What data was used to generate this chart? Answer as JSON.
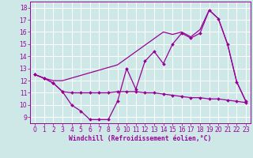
{
  "xlabel": "Windchill (Refroidissement éolien,°C)",
  "bg_color": "#cde8e6",
  "line_color": "#990099",
  "grid_color": "#ffffff",
  "ylim": [
    8.5,
    18.5
  ],
  "xlim": [
    -0.5,
    23.5
  ],
  "yticks": [
    9,
    10,
    11,
    12,
    13,
    14,
    15,
    16,
    17,
    18
  ],
  "xticks": [
    0,
    1,
    2,
    3,
    4,
    5,
    6,
    7,
    8,
    9,
    10,
    11,
    12,
    13,
    14,
    15,
    16,
    17,
    18,
    19,
    20,
    21,
    22,
    23
  ],
  "line1_x": [
    0,
    1,
    2,
    3,
    4,
    5,
    6,
    7,
    8,
    9,
    10,
    11,
    12,
    13,
    14,
    15,
    16,
    17,
    18,
    19,
    20,
    21,
    22,
    23
  ],
  "line1_y": [
    12.5,
    12.2,
    11.8,
    11.1,
    10.0,
    9.5,
    8.8,
    8.8,
    8.8,
    10.3,
    13.0,
    11.3,
    13.6,
    14.4,
    13.4,
    15.0,
    15.9,
    15.5,
    15.9,
    17.8,
    17.1,
    15.0,
    11.9,
    10.3
  ],
  "line2_x": [
    0,
    1,
    2,
    3,
    4,
    5,
    6,
    7,
    8,
    9,
    10,
    11,
    12,
    13,
    14,
    15,
    16,
    17,
    18,
    19,
    20,
    21,
    22,
    23
  ],
  "line2_y": [
    12.5,
    12.2,
    11.8,
    11.1,
    11.0,
    11.0,
    11.0,
    11.0,
    11.0,
    11.1,
    11.1,
    11.1,
    11.0,
    11.0,
    10.9,
    10.8,
    10.7,
    10.6,
    10.6,
    10.5,
    10.5,
    10.4,
    10.3,
    10.2
  ],
  "line3_x": [
    0,
    1,
    2,
    3,
    9,
    14,
    15,
    16,
    17,
    18,
    19,
    20,
    21,
    22,
    23
  ],
  "line3_y": [
    12.5,
    12.2,
    12.0,
    12.0,
    13.3,
    16.0,
    15.8,
    16.0,
    15.6,
    16.2,
    17.8,
    17.1,
    15.0,
    11.9,
    10.3
  ]
}
